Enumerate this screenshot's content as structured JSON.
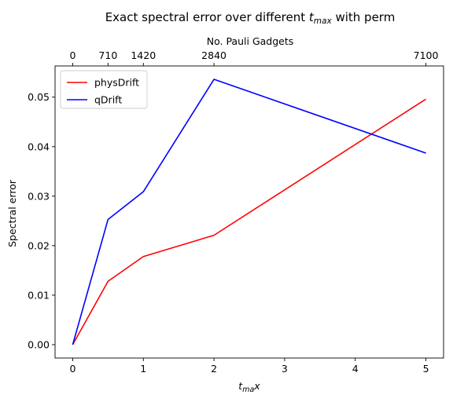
{
  "chart_data": {
    "type": "line",
    "title": "Exact spectral error over different t_max with perm",
    "title_prefix": "Exact spectral error over different ",
    "title_math_base": "t",
    "title_math_sub": "max",
    "title_suffix": " with perm",
    "xlabel_math_base": "t",
    "xlabel_math_sub": "ma",
    "xlabel_math_tail": "x",
    "ylabel": "Spectral error",
    "top_axis_label": "No. Pauli Gadgets",
    "x": [
      0,
      0.5,
      1,
      2,
      5
    ],
    "xlim": [
      -0.25,
      5.25
    ],
    "ylim": [
      -0.0027,
      0.0563
    ],
    "xticks": [
      0,
      1,
      2,
      3,
      4,
      5
    ],
    "xtick_labels": [
      "0",
      "1",
      "2",
      "3",
      "4",
      "5"
    ],
    "yticks": [
      0,
      0.01,
      0.02,
      0.03,
      0.04,
      0.05
    ],
    "ytick_labels": [
      "0.00",
      "0.01",
      "0.02",
      "0.03",
      "0.04",
      "0.05"
    ],
    "top_ticks": [
      0,
      0.5,
      1,
      2,
      5
    ],
    "top_tick_labels": [
      "0",
      "710",
      "1420",
      "2840",
      "7100"
    ],
    "grid": false,
    "legend_position": "top-left",
    "series": [
      {
        "name": "physDrift",
        "color": "#ff0000",
        "values": [
          0.0,
          0.0128,
          0.0178,
          0.0221,
          0.0496
        ]
      },
      {
        "name": "qDrift",
        "color": "#0000ff",
        "values": [
          0.0,
          0.0253,
          0.0309,
          0.0536,
          0.0387
        ]
      }
    ]
  }
}
